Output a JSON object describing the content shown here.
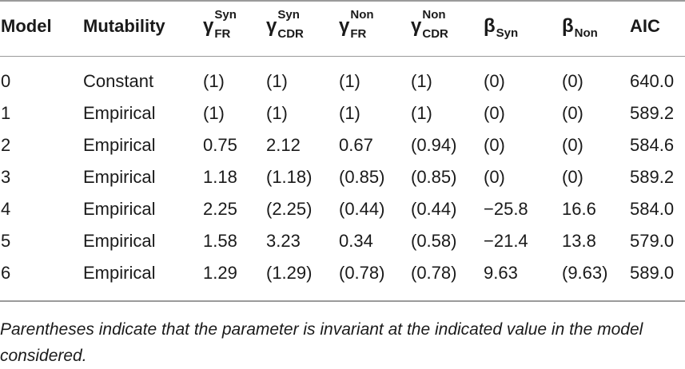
{
  "table": {
    "headers": {
      "model": "Model",
      "mutability": "Mutability",
      "gamma_syn_fr": {
        "symbol": "γ",
        "sup": "Syn",
        "sub": "FR"
      },
      "gamma_syn_cdr": {
        "symbol": "γ",
        "sup": "Syn",
        "sub": "CDR"
      },
      "gamma_non_fr": {
        "symbol": "γ",
        "sup": "Non",
        "sub": "FR"
      },
      "gamma_non_cdr": {
        "symbol": "γ",
        "sup": "Non",
        "sub": "CDR"
      },
      "beta_syn": {
        "symbol": "β",
        "sub": "Syn"
      },
      "beta_non": {
        "symbol": "β",
        "sub": "Non"
      },
      "aic": "AIC"
    },
    "rows": [
      [
        "0",
        "Constant",
        "(1)",
        "(1)",
        "(1)",
        "(1)",
        "(0)",
        "(0)",
        "640.0"
      ],
      [
        "1",
        "Empirical",
        "(1)",
        "(1)",
        "(1)",
        "(1)",
        "(0)",
        "(0)",
        "589.2"
      ],
      [
        "2",
        "Empirical",
        "0.75",
        "2.12",
        "0.67",
        "(0.94)",
        "(0)",
        "(0)",
        "584.6"
      ],
      [
        "3",
        "Empirical",
        "1.18",
        "(1.18)",
        "(0.85)",
        "(0.85)",
        "(0)",
        "(0)",
        "589.2"
      ],
      [
        "4",
        "Empirical",
        "2.25",
        "(2.25)",
        "(0.44)",
        "(0.44)",
        "−25.8",
        "16.6",
        "584.0"
      ],
      [
        "5",
        "Empirical",
        "1.58",
        "3.23",
        "0.34",
        "(0.58)",
        "−21.4",
        "13.8",
        "579.0"
      ],
      [
        "6",
        "Empirical",
        "1.29",
        "(1.29)",
        "(0.78)",
        "(0.78)",
        "9.63",
        "(9.63)",
        "589.0"
      ]
    ]
  },
  "footnote": "Parentheses indicate that the parameter is invariant at the indicated value in the model considered."
}
